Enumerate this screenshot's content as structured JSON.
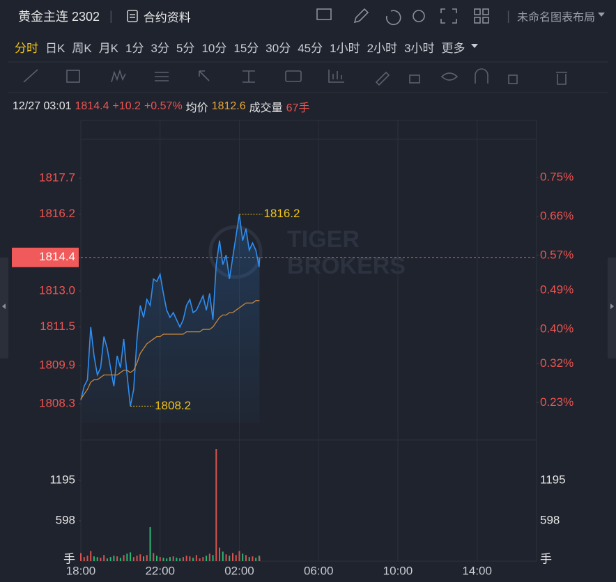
{
  "header": {
    "title": "黄金主连 2302",
    "contract_info": "合约资料",
    "layout_name": "未命名图表布局"
  },
  "tabs": [
    "分时",
    "日K",
    "周K",
    "月K",
    "1分",
    "3分",
    "5分",
    "10分",
    "15分",
    "30分",
    "45分",
    "1小时",
    "2小时",
    "3小时",
    "更多"
  ],
  "active_tab": 0,
  "chart_data": {
    "type": "line",
    "info": {
      "time": "12/27 03:01",
      "change": "+10.2",
      "change_pct": "+0.57%",
      "volume_label": "成交量",
      "volume": "67手"
    },
    "watermark": [
      "TIGER",
      "BROKERS"
    ],
    "x": [
      "18:00",
      "18:10",
      "18:20",
      "18:30",
      "18:40",
      "18:50",
      "19:00",
      "19:10",
      "19:20",
      "19:30",
      "19:40",
      "19:50",
      "20:00",
      "20:10",
      "20:20",
      "20:30",
      "20:40",
      "20:50",
      "21:00",
      "21:10",
      "21:20",
      "21:30",
      "21:40",
      "21:50",
      "22:00",
      "22:10",
      "22:20",
      "22:30",
      "22:40",
      "22:50",
      "23:00",
      "23:10",
      "23:20",
      "23:30",
      "23:40",
      "23:50",
      "00:00",
      "00:10",
      "00:20",
      "00:30",
      "00:40",
      "00:50",
      "01:00",
      "01:10",
      "01:20",
      "01:30",
      "01:40",
      "01:50",
      "02:00",
      "02:10",
      "02:20",
      "02:30",
      "02:40",
      "02:50",
      "03:00",
      "03:01"
    ],
    "xlim": [
      "18:00",
      "17:00"
    ],
    "xticks": [
      "18:00",
      "22:00",
      "02:00",
      "06:00",
      "10:00",
      "14:00"
    ],
    "series": [
      {
        "color": "#2f8ef0",
        "values": [
          1808.45,
          1809.03,
          1809.3,
          1811.5,
          1810.3,
          1809.5,
          1809.8,
          1811.1,
          1810.6,
          1809.8,
          1809.03,
          1810.3,
          1809.8,
          1811.0,
          1809.5,
          1808.2,
          1808.9,
          1811.0,
          1812.4,
          1811.9,
          1812.65,
          1812.4,
          1813.5,
          1813.4,
          1813.7,
          1812.9,
          1812.2,
          1811.9,
          1812.1,
          1811.8,
          1811.5,
          1811.8,
          1812.4,
          1812.65,
          1812.1,
          1812.2,
          1812.5,
          1812.8,
          1812.2,
          1812.9,
          1811.8,
          1814.1,
          1815.1,
          1814.1,
          1814.5,
          1813.5,
          1814.4,
          1815.3,
          1816.2,
          1815.1,
          1815.6,
          1814.7,
          1815.0,
          1814.7,
          1814.0,
          1814.4
        ]
      },
      {
        "name": "均价",
        "color": "#c8863a",
        "values": [
          1808.5,
          1808.7,
          1808.9,
          1809.2,
          1809.3,
          1809.3,
          1809.4,
          1809.5,
          1809.5,
          1809.5,
          1809.5,
          1809.5,
          1809.6,
          1809.7,
          1809.7,
          1809.6,
          1809.7,
          1810.0,
          1810.4,
          1810.6,
          1810.8,
          1810.9,
          1811.0,
          1811.1,
          1811.1,
          1811.2,
          1811.2,
          1811.2,
          1811.2,
          1811.2,
          1811.2,
          1811.2,
          1811.3,
          1811.3,
          1811.3,
          1811.3,
          1811.3,
          1811.4,
          1811.4,
          1811.4,
          1811.5,
          1811.7,
          1811.9,
          1812.0,
          1812.0,
          1812.1,
          1812.1,
          1812.2,
          1812.3,
          1812.4,
          1812.5,
          1812.5,
          1812.5,
          1812.6,
          1812.6,
          1812.6
        ]
      }
    ],
    "ylim": [
      1806.79,
      1820.11
    ],
    "yticks": [
      1817.7,
      1816.2,
      1814.4,
      {
        "value": 1813.0,
        "label": "1813.0"
      },
      1811.5,
      1809.9,
      1808.3
    ],
    "y2lim": [
      0.144,
      0.882
    ],
    "y2ticks": [
      {
        "value": 0.75,
        "label": "0.75%"
      },
      {
        "value": 0.66,
        "label": "0.66%"
      },
      {
        "value": 0.57,
        "label": "0.57%"
      },
      {
        "value": 0.49,
        "label": "0.49%"
      },
      {
        "value": 0.4,
        "label": "0.40%"
      },
      {
        "value": 0.32,
        "label": "0.32%"
      },
      {
        "value": 0.23,
        "label": "0.23%"
      }
    ],
    "annotations": [
      {
        "x": "02:00",
        "value": 1816.2
      },
      {
        "x": "20:30",
        "value": 1808.2
      }
    ],
    "volume": {
      "unit": "手",
      "ylim": [
        0,
        1791
      ],
      "yticks": [
        1195,
        598
      ],
      "values": [
        120,
        60,
        80,
        150,
        70,
        60,
        50,
        90,
        40,
        60,
        80,
        70,
        50,
        90,
        110,
        130,
        60,
        80,
        100,
        70,
        90,
        504,
        120,
        80,
        60,
        50,
        40,
        60,
        70,
        50,
        40,
        60,
        80,
        70,
        50,
        90,
        40,
        60,
        80,
        110,
        90,
        1657,
        200,
        140,
        100,
        80,
        120,
        90,
        150,
        110,
        90,
        60,
        70,
        50,
        80,
        67
      ]
    },
    "grid": true
  }
}
